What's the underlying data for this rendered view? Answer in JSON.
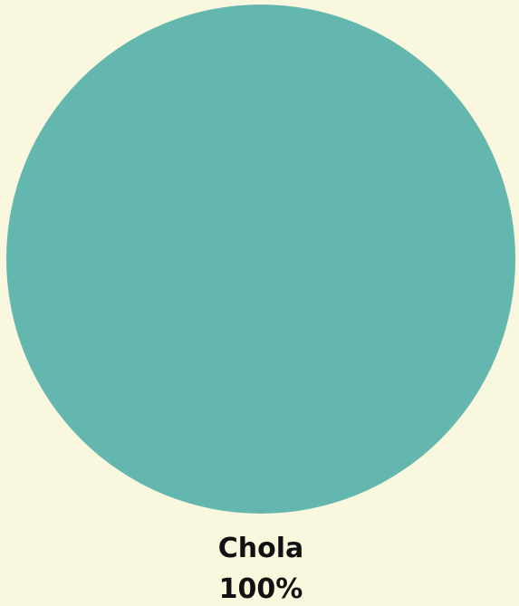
{
  "colors": {
    "background": "#f9f7dd",
    "slice_fill": "#64b7ae",
    "label_text": "#111111"
  },
  "chart_data": {
    "type": "pie",
    "title": "",
    "slices": [
      {
        "label": "Chola",
        "value": 100,
        "percent_label": "100%",
        "color": "#64b7ae"
      }
    ],
    "legend": "none"
  }
}
